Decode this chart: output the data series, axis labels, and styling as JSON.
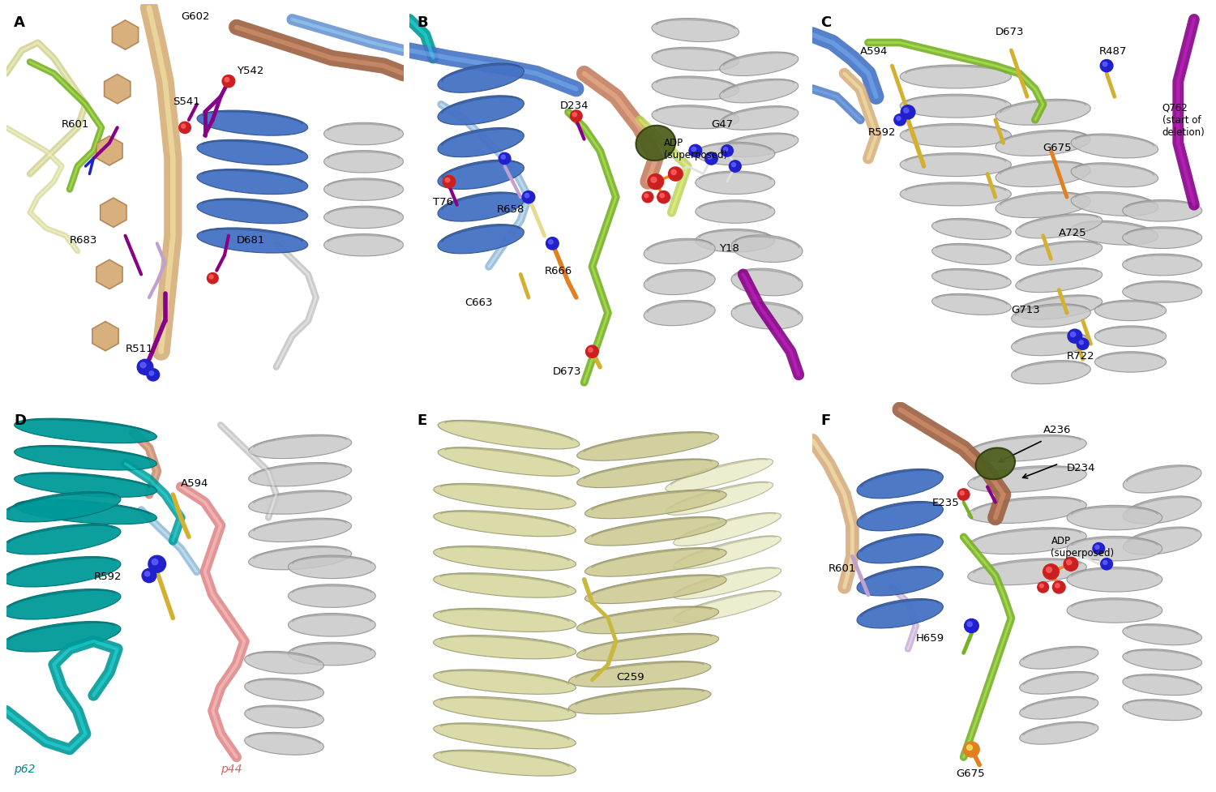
{
  "figure_size": [
    15.0,
    9.77
  ],
  "dpi": 100,
  "background_color": "#ffffff",
  "panels": [
    "A",
    "B",
    "C",
    "D",
    "E",
    "F"
  ],
  "panel_bg": "#ffffff",
  "colors": {
    "blue_helix": "#4472c4",
    "teal_helix": "#009999",
    "gray_helix": "#c8c8c8",
    "gray_helix_dark": "#a0a0a0",
    "tan_strand": "#d4a870",
    "brown_strand": "#a05030",
    "salmon_strand": "#c87860",
    "green_loop": "#80b030",
    "olive_patch": "#607030",
    "yellow_residue": "#d4b030",
    "orange_residue": "#e08020",
    "purple_residue": "#880088",
    "pink_loop": "#e08888",
    "lavender": "#c0a0d0",
    "light_blue_loop": "#90b8d8",
    "light_yellow_loop": "#d8d898",
    "red_oxygen": "#cc2020",
    "blue_nitrogen": "#2020cc",
    "white_stick": "#e8e8e8"
  }
}
